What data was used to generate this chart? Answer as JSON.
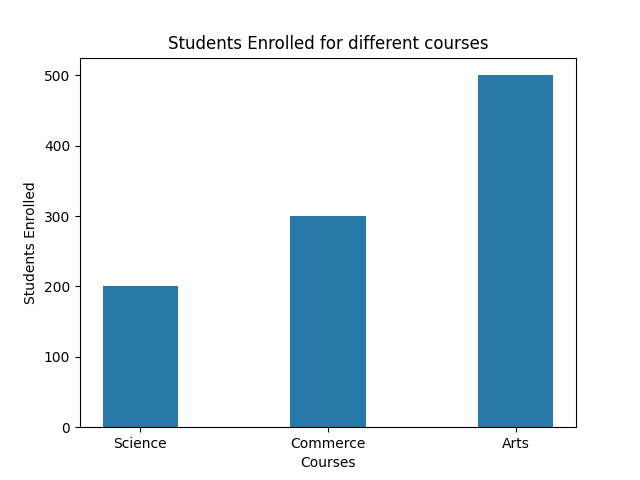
{
  "categories": [
    "Science",
    "Commerce",
    "Arts"
  ],
  "values": [
    200,
    300,
    500
  ],
  "bar_color": "#2878a8",
  "title": "Students Enrolled for different courses",
  "xlabel": "Courses",
  "ylabel": "Students Enrolled",
  "ylim": [
    0,
    525
  ],
  "bar_width": 0.4,
  "align": "center",
  "figsize": [
    6.4,
    4.8
  ],
  "dpi": 100
}
